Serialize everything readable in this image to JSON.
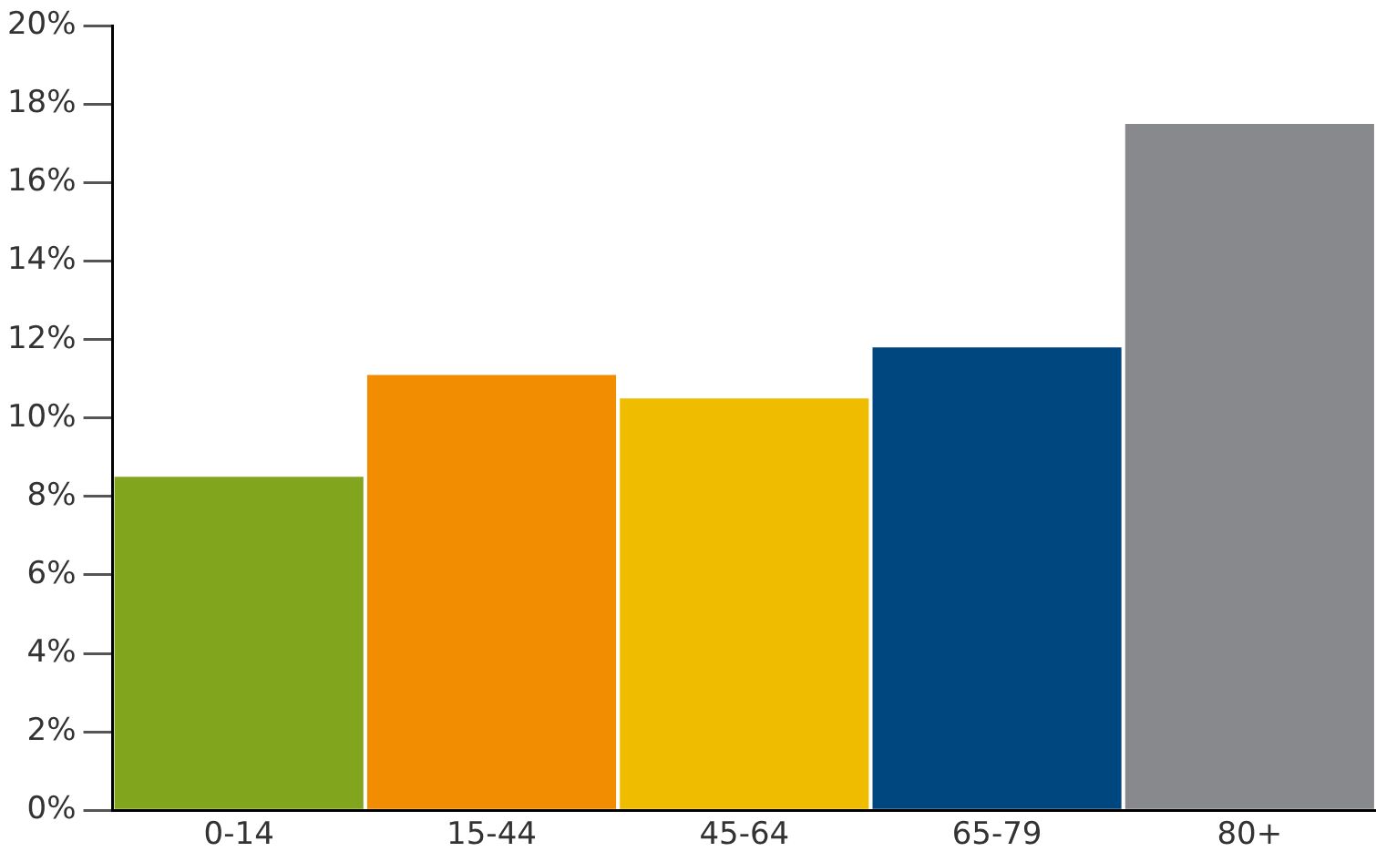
{
  "chart_data": {
    "type": "bar",
    "categories": [
      "0-14",
      "15-44",
      "45-64",
      "65-79",
      "80+"
    ],
    "values": [
      8.5,
      11.1,
      10.5,
      11.8,
      17.5
    ],
    "colors": [
      "#82a51e",
      "#f28c00",
      "#efbc00",
      "#00467f",
      "#88898d"
    ],
    "ylim": [
      0,
      20
    ],
    "yticks": [
      {
        "value": 0,
        "label": "0%"
      },
      {
        "value": 2,
        "label": "2%"
      },
      {
        "value": 4,
        "label": "4%"
      },
      {
        "value": 6,
        "label": "6%"
      },
      {
        "value": 8,
        "label": "8%"
      },
      {
        "value": 10,
        "label": "10%"
      },
      {
        "value": 12,
        "label": "12%"
      },
      {
        "value": 14,
        "label": "14%"
      },
      {
        "value": 16,
        "label": "16%"
      },
      {
        "value": 18,
        "label": "18%"
      },
      {
        "value": 20,
        "label": "20%"
      }
    ],
    "grid": false,
    "legend": false
  }
}
